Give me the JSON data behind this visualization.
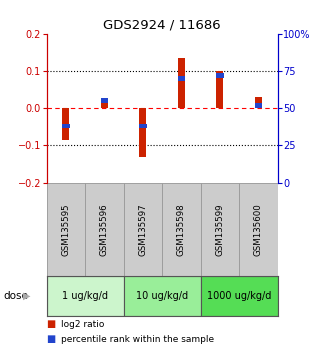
{
  "title": "GDS2924 / 11686",
  "samples": [
    "GSM135595",
    "GSM135596",
    "GSM135597",
    "GSM135598",
    "GSM135599",
    "GSM135600"
  ],
  "log2_ratio": [
    -0.085,
    0.02,
    -0.13,
    0.135,
    0.1,
    0.03
  ],
  "percentile_rank": [
    38,
    55,
    38,
    70,
    72,
    52
  ],
  "ylim_left": [
    -0.2,
    0.2
  ],
  "ylim_right": [
    0,
    100
  ],
  "yticks_left": [
    -0.2,
    -0.1,
    0.0,
    0.1,
    0.2
  ],
  "yticks_right": [
    0,
    25,
    50,
    75,
    100
  ],
  "ytick_labels_right": [
    "0",
    "25",
    "50",
    "75",
    "100%"
  ],
  "dose_groups": [
    {
      "label": "1 ug/kg/d",
      "samples": [
        0,
        1
      ],
      "color": "#ccf5cc"
    },
    {
      "label": "10 ug/kg/d",
      "samples": [
        2,
        3
      ],
      "color": "#99ee99"
    },
    {
      "label": "1000 ug/kg/d",
      "samples": [
        4,
        5
      ],
      "color": "#55dd55"
    }
  ],
  "bar_color_red": "#cc2200",
  "bar_color_blue": "#2244cc",
  "bar_width": 0.18,
  "blue_bar_height": 0.013,
  "dotted_lines": [
    -0.1,
    0.0,
    0.1
  ],
  "legend_red": "log2 ratio",
  "legend_blue": "percentile rank within the sample",
  "dose_label": "dose",
  "sample_box_color": "#cccccc",
  "bg_color": "#ffffff",
  "left_spine_color": "#cc0000",
  "right_spine_color": "#0000cc"
}
